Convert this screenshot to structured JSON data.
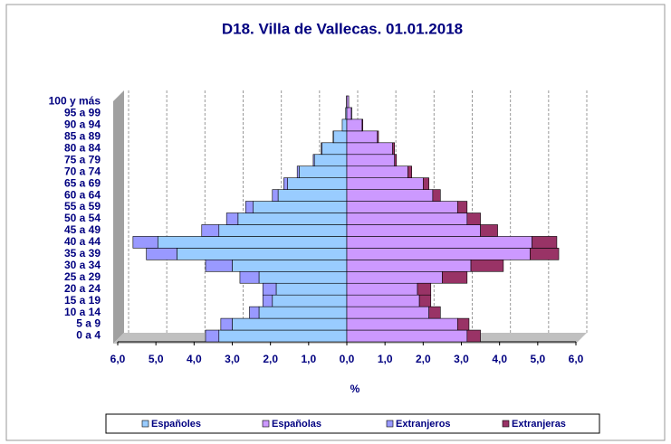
{
  "chart_data": {
    "type": "pyramid",
    "title": "D18. Villa de Vallecas. 01.01.2018",
    "x_label": "%",
    "categories": [
      "0 a 4",
      "5 a 9",
      "10 a 14",
      "15 a 19",
      "20 a 24",
      "25 a 29",
      "30 a 34",
      "35 a 39",
      "40 a 44",
      "45 a 49",
      "50 a 54",
      "55 a 59",
      "60 a 64",
      "65 a 69",
      "70 a 74",
      "75 a 79",
      "80 a 84",
      "85 a 89",
      "90 a 94",
      "95 a 99",
      "100 y más"
    ],
    "series": [
      {
        "name": "Españoles",
        "color": "#99ccff",
        "values": [
          -3.35,
          -3.0,
          -2.3,
          -1.95,
          -1.85,
          -2.3,
          -3.0,
          -4.45,
          -4.95,
          -3.35,
          -2.85,
          -2.45,
          -1.8,
          -1.55,
          -1.25,
          -0.85,
          -0.65,
          -0.35,
          -0.12,
          -0.03,
          -0.01
        ]
      },
      {
        "name": "Españolas",
        "color": "#cc99ff",
        "values": [
          3.15,
          2.9,
          2.15,
          1.9,
          1.85,
          2.5,
          3.25,
          4.8,
          4.85,
          3.5,
          3.15,
          2.9,
          2.25,
          2.0,
          1.6,
          1.25,
          1.2,
          0.8,
          0.4,
          0.12,
          0.05
        ]
      },
      {
        "name": "Extranjeros",
        "color": "#9999ff",
        "values": [
          -0.35,
          -0.3,
          -0.25,
          -0.25,
          -0.35,
          -0.5,
          -0.7,
          -0.8,
          -0.65,
          -0.45,
          -0.3,
          -0.2,
          -0.15,
          -0.1,
          -0.05,
          -0.03,
          -0.02,
          -0.01,
          0,
          0,
          0
        ]
      },
      {
        "name": "Extranjeras",
        "color": "#993366",
        "values": [
          0.35,
          0.3,
          0.3,
          0.3,
          0.35,
          0.65,
          0.85,
          0.75,
          0.65,
          0.45,
          0.35,
          0.25,
          0.2,
          0.15,
          0.1,
          0.05,
          0.05,
          0.03,
          0.02,
          0.01,
          0
        ]
      }
    ],
    "xlim": [
      -6,
      6
    ],
    "xticks": [
      {
        "value": -6,
        "label": "6,0"
      },
      {
        "value": -5,
        "label": "5,0"
      },
      {
        "value": -4,
        "label": "4,0"
      },
      {
        "value": -3,
        "label": "3,0"
      },
      {
        "value": -2,
        "label": "2,0"
      },
      {
        "value": -1,
        "label": "1,0"
      },
      {
        "value": 0,
        "label": "0,0"
      },
      {
        "value": 1,
        "label": "1,0"
      },
      {
        "value": 2,
        "label": "2,0"
      },
      {
        "value": 3,
        "label": "3,0"
      },
      {
        "value": 4,
        "label": "4,0"
      },
      {
        "value": 5,
        "label": "5,0"
      },
      {
        "value": 6,
        "label": "6,0"
      }
    ],
    "grid": true
  }
}
